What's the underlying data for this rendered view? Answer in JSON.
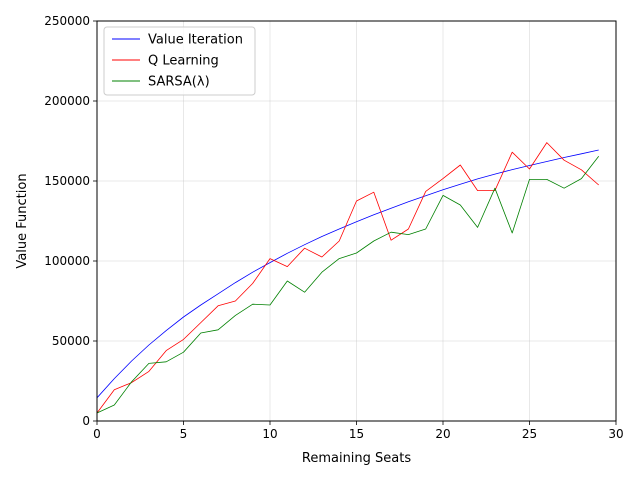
{
  "chart_data": {
    "type": "line",
    "title": "",
    "xlabel": "Remaining Seats",
    "ylabel": "Value Function",
    "xlim": [
      0,
      30
    ],
    "ylim": [
      0,
      250000
    ],
    "xticks": [
      0,
      5,
      10,
      15,
      20,
      25,
      30
    ],
    "yticks": [
      0,
      50000,
      100000,
      150000,
      200000,
      250000
    ],
    "xtick_labels": [
      "0",
      "5",
      "10",
      "15",
      "20",
      "25",
      "30"
    ],
    "ytick_labels": [
      "0",
      "50000",
      "100000",
      "150000",
      "200000",
      "250000"
    ],
    "grid": true,
    "legend_position": "top-left",
    "x": [
      0,
      1,
      2,
      3,
      4,
      5,
      6,
      7,
      8,
      9,
      10,
      11,
      12,
      13,
      14,
      15,
      16,
      17,
      18,
      19,
      20,
      21,
      22,
      23,
      24,
      25,
      26,
      27,
      28,
      29
    ],
    "series": [
      {
        "name": "Value Iteration",
        "color": "#0000ff",
        "values": [
          14500,
          26500,
          37500,
          47500,
          56500,
          65000,
          72500,
          79500,
          86500,
          93000,
          99000,
          104800,
          110200,
          115300,
          120000,
          124500,
          128900,
          133000,
          137000,
          140800,
          144500,
          148000,
          151300,
          154300,
          157100,
          159700,
          162200,
          164700,
          167000,
          169400
        ]
      },
      {
        "name": "Q Learning",
        "color": "#ff0000",
        "values": [
          5000,
          19500,
          24000,
          31000,
          44000,
          51000,
          61500,
          72000,
          75000,
          86000,
          101500,
          96500,
          108000,
          102500,
          112500,
          137500,
          143000,
          113000,
          120000,
          143500,
          151500,
          160000,
          144000,
          144000,
          168000,
          157500,
          174000,
          163000,
          157000,
          147500
        ]
      },
      {
        "name": "SARSA(λ)",
        "color": "#008000",
        "values": [
          5000,
          10000,
          24500,
          36000,
          37000,
          43000,
          55000,
          57000,
          66000,
          73000,
          72500,
          87500,
          80500,
          93000,
          101500,
          105000,
          112500,
          118000,
          116500,
          120000,
          141000,
          135000,
          121000,
          145500,
          117500,
          151000,
          151000,
          145500,
          151500,
          165500
        ]
      }
    ]
  }
}
